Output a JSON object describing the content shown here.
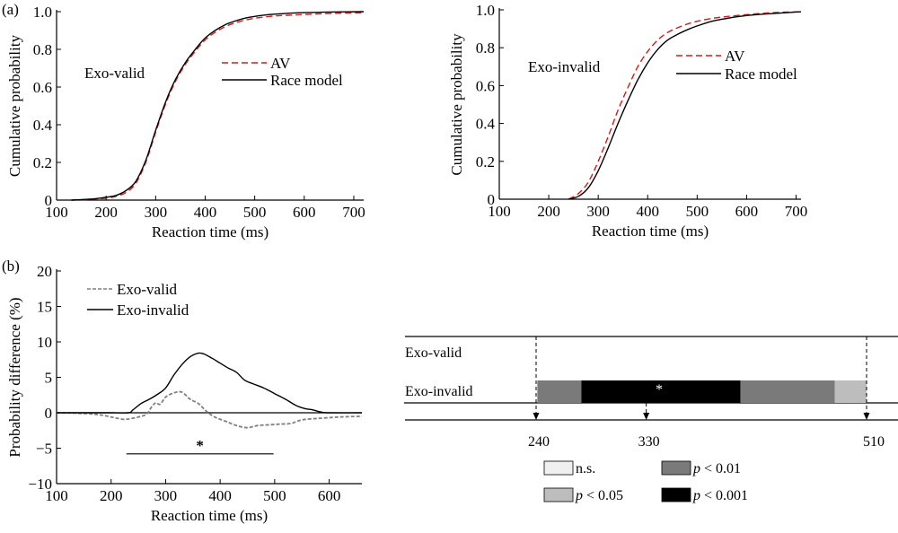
{
  "figure": {
    "panel_a_label": "(a)",
    "panel_b_label": "(b)"
  },
  "chart_data": [
    {
      "type": "line",
      "panel": "a-left",
      "title": "",
      "annotation": "Exo-valid",
      "xlabel": "Reaction time (ms)",
      "ylabel": "Cumulative probability",
      "xlim": [
        100,
        720
      ],
      "ylim": [
        0,
        1.0
      ],
      "xticks": [
        100,
        200,
        300,
        400,
        500,
        600,
        700
      ],
      "xtick_labels": [
        "100",
        "200",
        "300",
        "400",
        "500",
        "600",
        "700"
      ],
      "yticks": [
        0,
        0.2,
        0.4,
        0.6,
        0.8,
        1.0
      ],
      "ytick_labels": [
        "0",
        "0.2",
        "0.4",
        "0.6",
        "0.8",
        "1.0"
      ],
      "legend": {
        "placement": "center-right",
        "entries": [
          "AV",
          "Race model"
        ]
      },
      "series": [
        {
          "name": "AV",
          "style": "dashed",
          "color": "#d7191c",
          "x": [
            130,
            160,
            180,
            200,
            220,
            240,
            260,
            280,
            300,
            320,
            340,
            360,
            380,
            400,
            420,
            440,
            460,
            480,
            500,
            530,
            560,
            600,
            650,
            720
          ],
          "y": [
            0.0,
            0.003,
            0.006,
            0.01,
            0.02,
            0.04,
            0.09,
            0.2,
            0.36,
            0.51,
            0.63,
            0.72,
            0.79,
            0.85,
            0.89,
            0.92,
            0.94,
            0.955,
            0.965,
            0.975,
            0.98,
            0.985,
            0.99,
            0.995
          ]
        },
        {
          "name": "Race model",
          "style": "solid",
          "color": "#000000",
          "x": [
            130,
            160,
            180,
            200,
            220,
            240,
            260,
            280,
            300,
            320,
            340,
            360,
            380,
            400,
            420,
            440,
            460,
            480,
            500,
            530,
            560,
            600,
            650,
            720
          ],
          "y": [
            0.0,
            0.004,
            0.008,
            0.015,
            0.025,
            0.05,
            0.1,
            0.21,
            0.37,
            0.52,
            0.64,
            0.73,
            0.8,
            0.86,
            0.9,
            0.93,
            0.95,
            0.965,
            0.975,
            0.985,
            0.99,
            0.995,
            0.998,
            1.0
          ]
        }
      ]
    },
    {
      "type": "line",
      "panel": "a-right",
      "title": "",
      "annotation": "Exo-invalid",
      "xlabel": "Reaction time (ms)",
      "ylabel": "Cumulative probability",
      "xlim": [
        100,
        710
      ],
      "ylim": [
        0,
        1.0
      ],
      "xticks": [
        100,
        200,
        300,
        400,
        500,
        600,
        700
      ],
      "xtick_labels": [
        "100",
        "200",
        "300",
        "400",
        "500",
        "600",
        "700"
      ],
      "yticks": [
        0,
        0.2,
        0.4,
        0.6,
        0.8,
        1.0
      ],
      "ytick_labels": [
        "0",
        "0.2",
        "0.4",
        "0.6",
        "0.8",
        "1.0"
      ],
      "legend": {
        "placement": "center-right",
        "entries": [
          "AV",
          "Race model"
        ]
      },
      "series": [
        {
          "name": "AV",
          "style": "dashed",
          "color": "#d7191c",
          "x": [
            240,
            260,
            280,
            300,
            320,
            340,
            360,
            380,
            400,
            420,
            440,
            460,
            480,
            500,
            530,
            560,
            600,
            650,
            710
          ],
          "y": [
            0.0,
            0.03,
            0.09,
            0.2,
            0.33,
            0.47,
            0.59,
            0.7,
            0.78,
            0.84,
            0.88,
            0.905,
            0.925,
            0.94,
            0.955,
            0.965,
            0.975,
            0.985,
            0.99
          ]
        },
        {
          "name": "Race model",
          "style": "solid",
          "color": "#000000",
          "x": [
            240,
            260,
            280,
            300,
            320,
            340,
            360,
            380,
            400,
            420,
            440,
            460,
            480,
            500,
            530,
            560,
            600,
            650,
            710
          ],
          "y": [
            0.0,
            0.015,
            0.06,
            0.15,
            0.27,
            0.4,
            0.52,
            0.63,
            0.72,
            0.79,
            0.84,
            0.87,
            0.895,
            0.915,
            0.94,
            0.955,
            0.97,
            0.98,
            0.99
          ]
        }
      ]
    },
    {
      "type": "line",
      "panel": "b-left",
      "title": "",
      "xlabel": "Reaction time (ms)",
      "ylabel": "Probability difference (%)",
      "xlim": [
        100,
        660
      ],
      "ylim": [
        -10,
        20
      ],
      "xticks": [
        100,
        200,
        300,
        400,
        500,
        600
      ],
      "xtick_labels": [
        "100",
        "200",
        "300",
        "400",
        "500",
        "600"
      ],
      "yticks": [
        -10,
        -5,
        0,
        5,
        10,
        15,
        20
      ],
      "ytick_labels": [
        "−10",
        "−5",
        "0",
        "5",
        "10",
        "15",
        "20"
      ],
      "legend": {
        "placement": "top-left",
        "entries": [
          "Exo-valid",
          "Exo-invalid"
        ]
      },
      "significance_bar": {
        "x_start": 228,
        "x_end": 498,
        "y": -5.8,
        "label": "*"
      },
      "series": [
        {
          "name": "Exo-valid",
          "style": "dashed",
          "color": "#808080",
          "x": [
            100,
            150,
            180,
            200,
            220,
            230,
            250,
            265,
            275,
            282,
            290,
            300,
            315,
            330,
            345,
            360,
            375,
            390,
            410,
            430,
            450,
            470,
            490,
            510,
            530,
            550,
            580,
            620,
            660
          ],
          "y": [
            0,
            -0.1,
            -0.3,
            -0.6,
            -0.9,
            -0.9,
            -0.6,
            -0.2,
            0.9,
            1.4,
            1.2,
            2.2,
            2.8,
            2.9,
            1.9,
            1.3,
            0.2,
            -0.6,
            -1.2,
            -1.8,
            -2.1,
            -1.8,
            -1.7,
            -1.6,
            -1.5,
            -1.0,
            -0.8,
            -0.6,
            -0.5
          ]
        },
        {
          "name": "Exo-invalid",
          "style": "solid",
          "color": "#000000",
          "x": [
            100,
            200,
            232,
            240,
            255,
            270,
            285,
            300,
            315,
            330,
            345,
            360,
            370,
            385,
            400,
            415,
            430,
            445,
            460,
            480,
            500,
            520,
            540,
            555,
            570,
            585,
            600,
            660
          ],
          "y": [
            0,
            0,
            0,
            0.4,
            1.3,
            1.9,
            2.6,
            3.5,
            5.3,
            6.8,
            7.9,
            8.4,
            8.3,
            7.7,
            7.0,
            6.3,
            5.7,
            4.6,
            4.1,
            3.5,
            2.7,
            1.9,
            1.0,
            0.6,
            0.4,
            0.1,
            0,
            0
          ]
        }
      ]
    },
    {
      "type": "table",
      "panel": "b-right",
      "title": "",
      "rows": [
        "Exo-valid",
        "Exo-invalid"
      ],
      "time_markers": [
        240,
        330,
        510
      ],
      "time_marker_labels": [
        "240",
        "330",
        "510"
      ],
      "segments": [
        {
          "row": "Exo-invalid",
          "start": 241,
          "end": 277,
          "level": "p < 0.01"
        },
        {
          "row": "Exo-invalid",
          "start": 277,
          "end": 407,
          "level": "p < 0.001",
          "label": "*"
        },
        {
          "row": "Exo-invalid",
          "start": 407,
          "end": 484,
          "level": "p < 0.01"
        },
        {
          "row": "Exo-invalid",
          "start": 484,
          "end": 510,
          "level": "p < 0.05"
        }
      ],
      "legend": {
        "placement": "bottom",
        "entries": [
          {
            "label": "n.s.",
            "color": "#f0f0f0"
          },
          {
            "label": "p < 0.01",
            "p": "p",
            "rest": " < 0.01",
            "color": "#7a7a7a"
          },
          {
            "label": "p < 0.05",
            "p": "p",
            "rest": " < 0.05",
            "color": "#bdbdbd"
          },
          {
            "label": "p < 0.001",
            "p": "p",
            "rest": " < 0.001",
            "color": "#000000"
          }
        ]
      }
    }
  ]
}
